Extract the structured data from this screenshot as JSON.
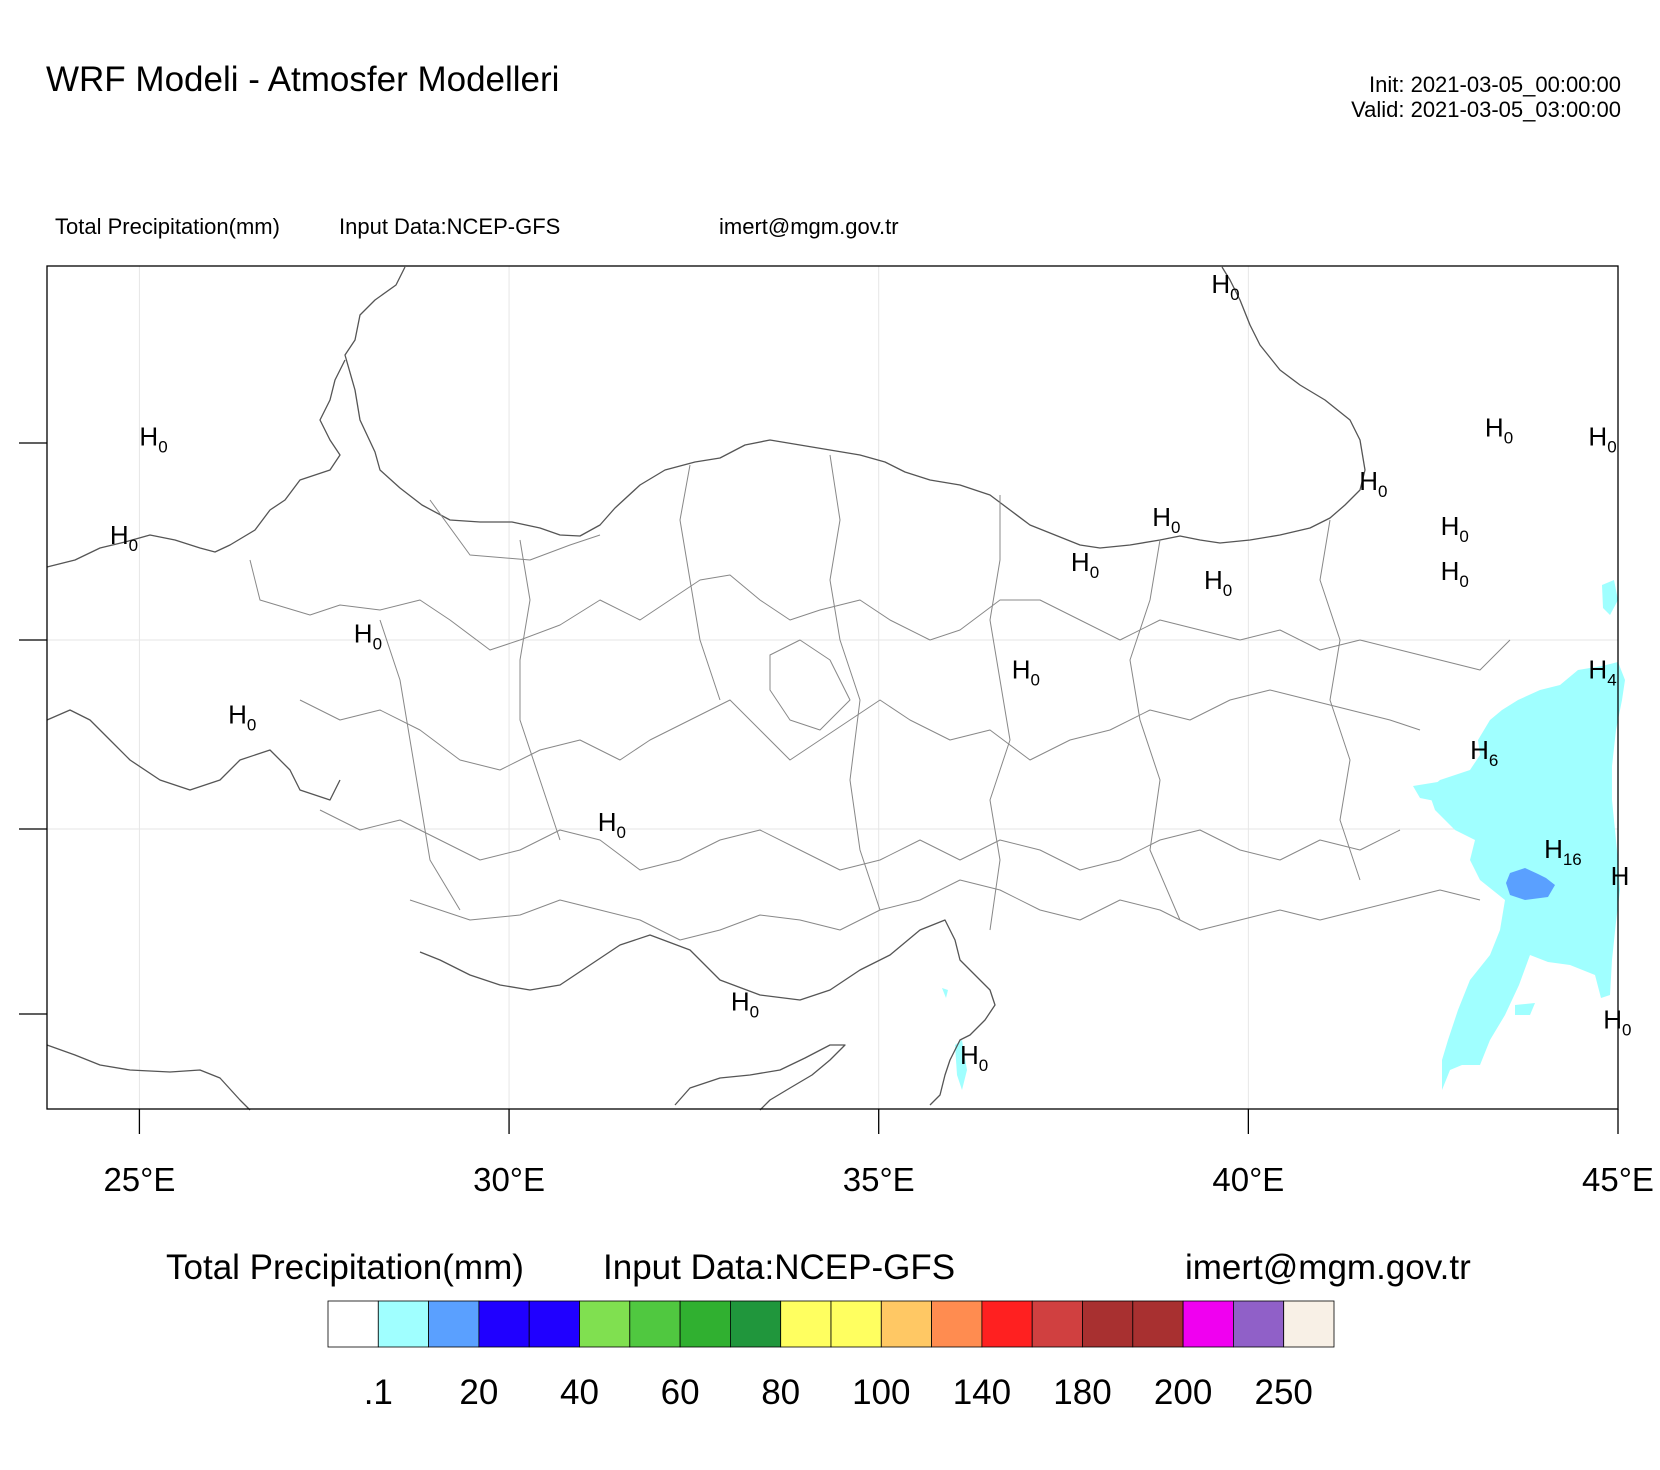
{
  "header": {
    "title": "WRF Modeli - Atmosfer Modelleri",
    "init": "Init: 2021-03-05_00:00:00",
    "valid": "Valid: 2021-03-05_03:00:00",
    "field": "Total Precipitation(mm)",
    "input": "Input Data:NCEP-GFS",
    "email": "imert@mgm.gov.tr"
  },
  "map": {
    "lon_range": [
      23.75,
      45.0
    ],
    "lon_ticks": [
      {
        "lon": 25,
        "label": "25°E"
      },
      {
        "lon": 30,
        "label": "30°E"
      },
      {
        "lon": 35,
        "label": "35°E"
      },
      {
        "lon": 40,
        "label": "40°E"
      },
      {
        "lon": 45,
        "label": "45°E"
      }
    ],
    "colors": {
      "coast": "#555555",
      "grid": "#e6e6e6",
      "frame": "#000000"
    },
    "max_markers": [
      {
        "lon": 39.5,
        "lat": 43.6,
        "value": "0"
      },
      {
        "lon": 25.0,
        "lat": 41.9,
        "value": "0"
      },
      {
        "lon": 43.2,
        "lat": 42.0,
        "value": "0"
      },
      {
        "lon": 44.6,
        "lat": 41.9,
        "value": "0"
      },
      {
        "lon": 41.5,
        "lat": 41.4,
        "value": "0"
      },
      {
        "lon": 24.6,
        "lat": 40.8,
        "value": "0"
      },
      {
        "lon": 38.7,
        "lat": 41.0,
        "value": "0"
      },
      {
        "lon": 42.6,
        "lat": 40.9,
        "value": "0"
      },
      {
        "lon": 37.6,
        "lat": 40.5,
        "value": "0"
      },
      {
        "lon": 42.6,
        "lat": 40.4,
        "value": "0"
      },
      {
        "lon": 39.4,
        "lat": 40.3,
        "value": "0"
      },
      {
        "lon": 27.9,
        "lat": 39.7,
        "value": "0"
      },
      {
        "lon": 36.8,
        "lat": 39.3,
        "value": "0"
      },
      {
        "lon": 44.6,
        "lat": 39.3,
        "value": "4"
      },
      {
        "lon": 26.2,
        "lat": 38.8,
        "value": "0"
      },
      {
        "lon": 43.0,
        "lat": 38.4,
        "value": "6"
      },
      {
        "lon": 31.2,
        "lat": 37.6,
        "value": "0"
      },
      {
        "lon": 44.0,
        "lat": 37.3,
        "value": "16"
      },
      {
        "lon": 44.9,
        "lat": 37.0,
        "value": ""
      },
      {
        "lon": 33.0,
        "lat": 35.6,
        "value": "0"
      },
      {
        "lon": 36.1,
        "lat": 35.0,
        "value": "0"
      },
      {
        "lon": 44.8,
        "lat": 35.4,
        "value": "0"
      }
    ]
  },
  "colorbar": {
    "title": "Total Precipitation(mm)",
    "input": "Input Data:NCEP-GFS",
    "email": "imert@mgm.gov.tr",
    "colors": [
      "#ffffff",
      "#a0ffff",
      "#5aa0ff",
      "#2000ff",
      "#2000ff",
      "#80e050",
      "#50c840",
      "#30b030",
      "#20963c",
      "#ffff60",
      "#ffff60",
      "#ffc864",
      "#ff8c50",
      "#ff2020",
      "#d04040",
      "#a83030",
      "#a83030",
      "#f000f0",
      "#9060c8",
      "#f8f0e6"
    ],
    "labels": [
      {
        "boundary": 1,
        "text": ".1"
      },
      {
        "boundary": 3,
        "text": "20"
      },
      {
        "boundary": 5,
        "text": "40"
      },
      {
        "boundary": 7,
        "text": "60"
      },
      {
        "boundary": 9,
        "text": "80"
      },
      {
        "boundary": 11,
        "text": "100"
      },
      {
        "boundary": 13,
        "text": "140"
      },
      {
        "boundary": 15,
        "text": "180"
      },
      {
        "boundary": 17,
        "text": "200"
      },
      {
        "boundary": 19,
        "text": "250"
      }
    ]
  }
}
